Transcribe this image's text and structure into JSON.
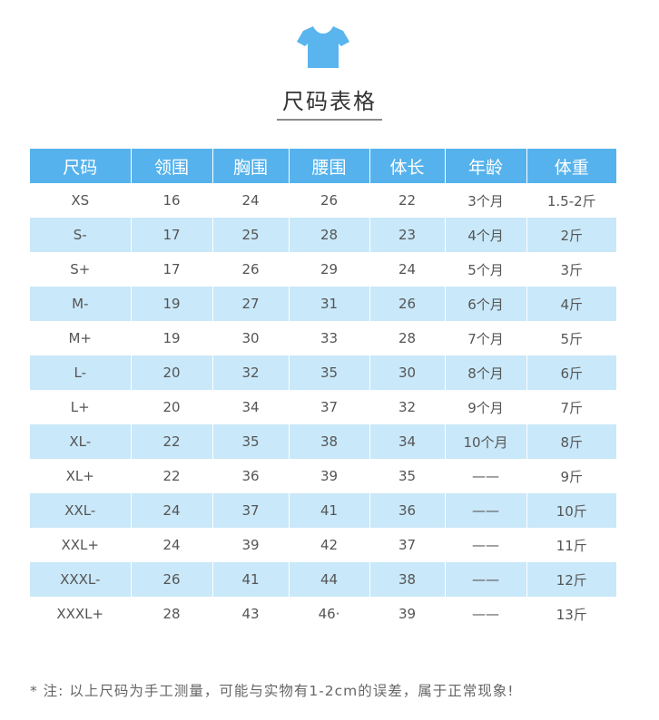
{
  "title": "尺码表格",
  "icon": {
    "name": "tshirt-icon",
    "color": "#5ab5ee"
  },
  "colors": {
    "header_bg": "#56b2ec",
    "stripe_bg": "#c9e8f9"
  },
  "table": {
    "headers": [
      "尺码",
      "领围",
      "胸围",
      "腰围",
      "体长",
      "年龄",
      "体重"
    ],
    "rows": [
      [
        "XS",
        "16",
        "24",
        "26",
        "22",
        "3个月",
        "1.5-2斤"
      ],
      [
        "S-",
        "17",
        "25",
        "28",
        "23",
        "4个月",
        "2斤"
      ],
      [
        "S+",
        "17",
        "26",
        "29",
        "24",
        "5个月",
        "3斤"
      ],
      [
        "M-",
        "19",
        "27",
        "31",
        "26",
        "6个月",
        "4斤"
      ],
      [
        "M+",
        "19",
        "30",
        "33",
        "28",
        "7个月",
        "5斤"
      ],
      [
        "L-",
        "20",
        "32",
        "35",
        "30",
        "8个月",
        "6斤"
      ],
      [
        "L+",
        "20",
        "34",
        "37",
        "32",
        "9个月",
        "7斤"
      ],
      [
        "XL-",
        "22",
        "35",
        "38",
        "34",
        "10个月",
        "8斤"
      ],
      [
        "XL+",
        "22",
        "36",
        "39",
        "35",
        "——",
        "9斤"
      ],
      [
        "XXL-",
        "24",
        "37",
        "41",
        "36",
        "——",
        "10斤"
      ],
      [
        "XXL+",
        "24",
        "39",
        "42",
        "37",
        "——",
        "11斤"
      ],
      [
        "XXXL-",
        "26",
        "41",
        "44",
        "38",
        "——",
        "12斤"
      ],
      [
        "XXXL+",
        "28",
        "43",
        "46·",
        "39",
        "——",
        "13斤"
      ]
    ]
  },
  "note": "* 注:  以上尺码为手工测量，可能与实物有1-2cm的误差，属于正常现象!"
}
